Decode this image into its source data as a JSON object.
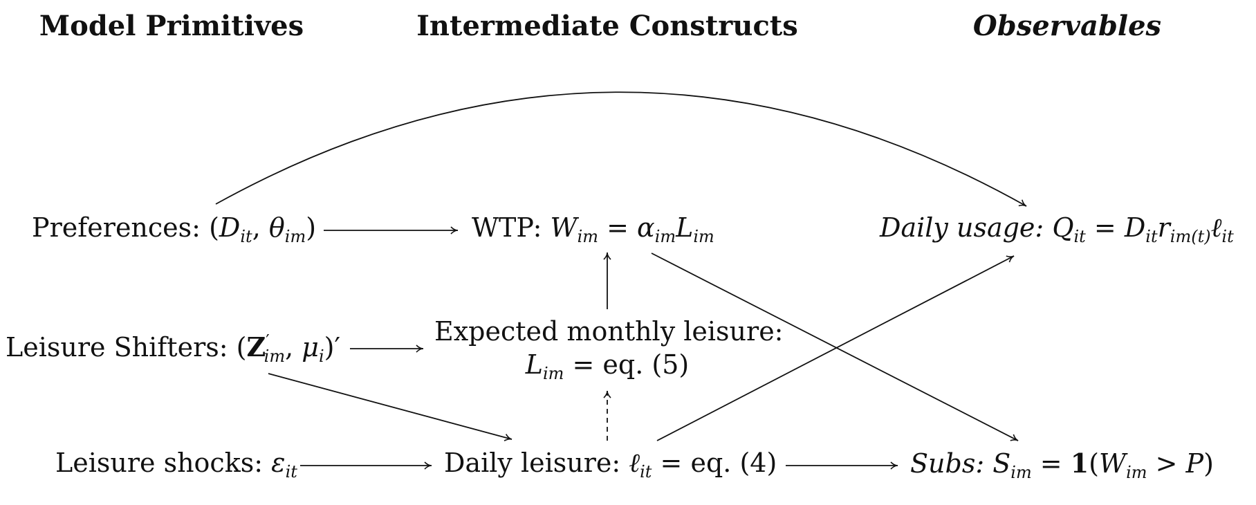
{
  "columns": {
    "primitives": "Model Primitives",
    "intermediate": "Intermediate Constructs",
    "observables": "Observables"
  },
  "nodes": {
    "preferences": {
      "label": "Preferences:"
    },
    "wtp": {
      "label": "WTP:"
    },
    "daily_usage": {
      "label": "Daily usage:"
    },
    "leisure_shifters": {
      "label": "Leisure Shifters:"
    },
    "expected_leisure": {
      "label": "Expected monthly leisure:",
      "eq": "= eq. (5)"
    },
    "leisure_shocks": {
      "label": "Leisure shocks:"
    },
    "daily_leisure": {
      "label": "Daily leisure:",
      "eq": "= eq. (4)"
    },
    "subs": {
      "label": "Subs:"
    }
  }
}
